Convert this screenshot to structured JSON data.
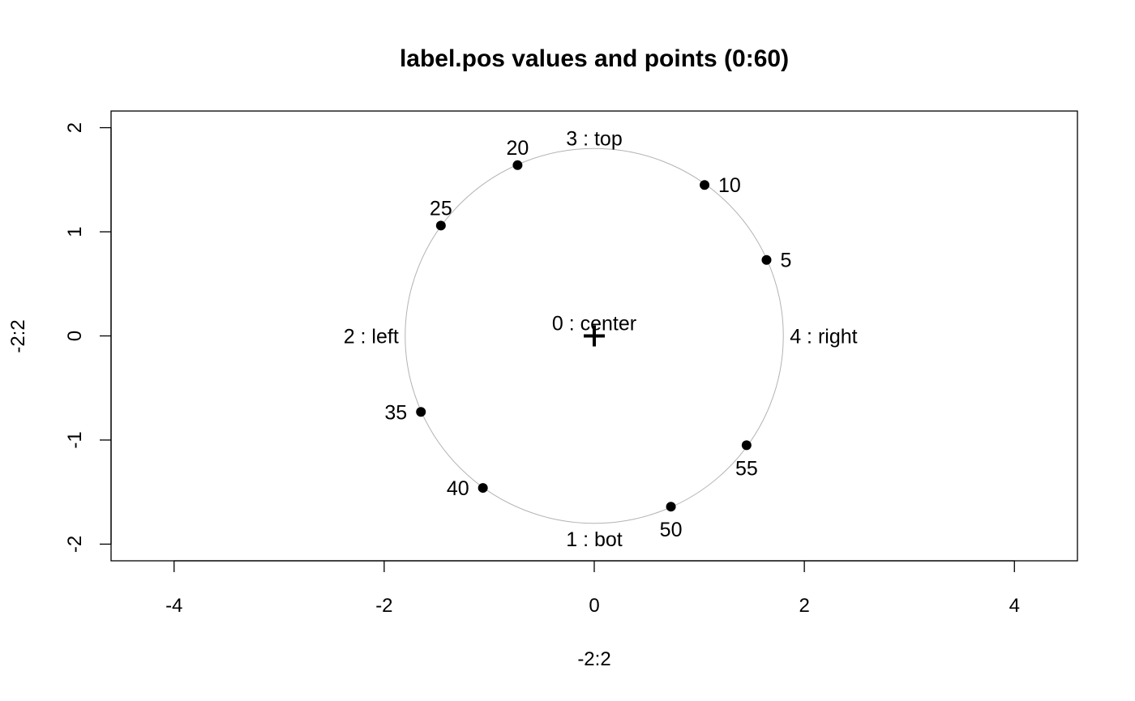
{
  "chart_data": {
    "type": "scatter",
    "title": "label.pos values and points (0:60)",
    "xlabel": "-2:2",
    "ylabel": "-2:2",
    "xlim": [
      -4.6,
      4.6
    ],
    "ylim": [
      -2.16,
      2.16
    ],
    "x_ticks": [
      -4,
      -2,
      0,
      2,
      4
    ],
    "y_ticks": [
      -2,
      -1,
      0,
      1,
      2
    ],
    "x_tick_labels": [
      "-4",
      "-2",
      "0",
      "2",
      "4"
    ],
    "y_tick_labels": [
      "-2",
      "-1",
      "0",
      "1",
      "2"
    ],
    "grid": false,
    "circle": {
      "center": [
        0,
        0
      ],
      "radius": 1.8,
      "color": "#b3b3b3"
    },
    "center_marker": {
      "x": 0,
      "y": 0,
      "shape": "plus",
      "color": "#000000"
    },
    "points": [
      {
        "label": "5",
        "x": 1.64,
        "y": 0.73,
        "label_side": "right"
      },
      {
        "label": "10",
        "x": 1.05,
        "y": 1.45,
        "label_side": "right"
      },
      {
        "label": "20",
        "x": -0.73,
        "y": 1.64,
        "label_side": "top"
      },
      {
        "label": "25",
        "x": -1.46,
        "y": 1.06,
        "label_side": "top"
      },
      {
        "label": "35",
        "x": -1.65,
        "y": -0.73,
        "label_side": "left"
      },
      {
        "label": "40",
        "x": -1.06,
        "y": -1.46,
        "label_side": "left"
      },
      {
        "label": "50",
        "x": 0.73,
        "y": -1.64,
        "label_side": "bottom"
      },
      {
        "label": "55",
        "x": 1.45,
        "y": -1.05,
        "label_side": "bottom"
      }
    ],
    "annotations": [
      {
        "text": "0 : center",
        "x": 0,
        "y": 0,
        "side": "center"
      },
      {
        "text": "1 : bot",
        "x": 0,
        "y": -1.8,
        "side": "bottom"
      },
      {
        "text": "2 : left",
        "x": -1.8,
        "y": 0,
        "side": "left"
      },
      {
        "text": "3 : top",
        "x": 0,
        "y": 1.8,
        "side": "top"
      },
      {
        "text": "4 : right",
        "x": 1.8,
        "y": 0,
        "side": "right"
      }
    ]
  }
}
